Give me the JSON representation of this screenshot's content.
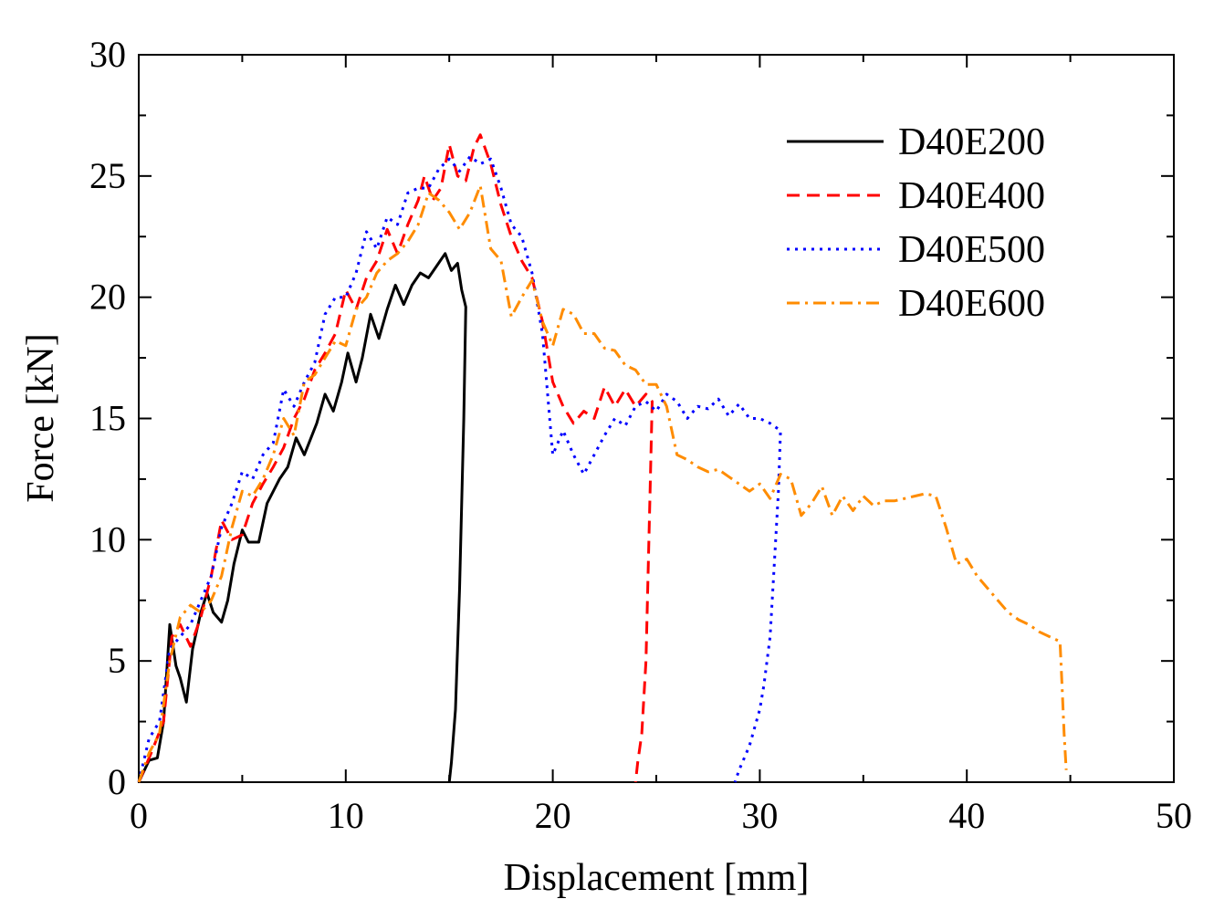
{
  "chart_data": {
    "type": "line",
    "title": "",
    "xlabel": "Displacement [mm]",
    "ylabel": "Force [kN]",
    "xlim": [
      0,
      50
    ],
    "ylim": [
      0,
      30
    ],
    "xticks": [
      0,
      10,
      20,
      30,
      40,
      50
    ],
    "yticks": [
      0,
      5,
      10,
      15,
      20,
      25,
      30
    ],
    "grid": false,
    "legend_position": "top-right",
    "series": [
      {
        "name": "D40E200",
        "color": "#000000",
        "dash": "solid",
        "points": [
          [
            0,
            0
          ],
          [
            0.5,
            0.9
          ],
          [
            0.9,
            1.0
          ],
          [
            1.2,
            2.5
          ],
          [
            1.5,
            6.5
          ],
          [
            1.8,
            4.8
          ],
          [
            2.0,
            4.3
          ],
          [
            2.3,
            3.3
          ],
          [
            2.6,
            5.5
          ],
          [
            3.0,
            7.0
          ],
          [
            3.3,
            7.8
          ],
          [
            3.6,
            7.0
          ],
          [
            4.0,
            6.6
          ],
          [
            4.3,
            7.5
          ],
          [
            4.6,
            9.0
          ],
          [
            5.0,
            10.4
          ],
          [
            5.3,
            9.9
          ],
          [
            5.8,
            9.9
          ],
          [
            6.2,
            11.5
          ],
          [
            6.8,
            12.5
          ],
          [
            7.2,
            13.0
          ],
          [
            7.6,
            14.2
          ],
          [
            8.0,
            13.5
          ],
          [
            8.6,
            14.8
          ],
          [
            9.0,
            16.0
          ],
          [
            9.4,
            15.3
          ],
          [
            9.8,
            16.5
          ],
          [
            10.1,
            17.7
          ],
          [
            10.5,
            16.5
          ],
          [
            10.8,
            17.5
          ],
          [
            11.2,
            19.3
          ],
          [
            11.6,
            18.3
          ],
          [
            12.0,
            19.5
          ],
          [
            12.4,
            20.5
          ],
          [
            12.8,
            19.7
          ],
          [
            13.2,
            20.5
          ],
          [
            13.6,
            21.0
          ],
          [
            14.0,
            20.8
          ],
          [
            14.4,
            21.3
          ],
          [
            14.8,
            21.8
          ],
          [
            15.1,
            21.1
          ],
          [
            15.4,
            21.4
          ],
          [
            15.6,
            20.3
          ],
          [
            15.8,
            19.6
          ],
          [
            15.7,
            15.0
          ],
          [
            15.5,
            8.0
          ],
          [
            15.3,
            3.0
          ],
          [
            15.1,
            0.8
          ],
          [
            15.0,
            0
          ]
        ]
      },
      {
        "name": "D40E400",
        "color": "#ff0000",
        "dash": "dashed",
        "points": [
          [
            0,
            0
          ],
          [
            0.6,
            1.2
          ],
          [
            1.2,
            2.5
          ],
          [
            1.6,
            6.0
          ],
          [
            2.0,
            6.5
          ],
          [
            2.5,
            5.6
          ],
          [
            3.0,
            6.8
          ],
          [
            3.5,
            8.5
          ],
          [
            4.0,
            10.8
          ],
          [
            4.5,
            10.0
          ],
          [
            5.0,
            10.2
          ],
          [
            5.5,
            11.5
          ],
          [
            6.0,
            12.3
          ],
          [
            6.5,
            13.0
          ],
          [
            7.0,
            13.8
          ],
          [
            7.5,
            15.0
          ],
          [
            8.0,
            15.8
          ],
          [
            8.5,
            17.0
          ],
          [
            9.0,
            17.7
          ],
          [
            9.5,
            18.5
          ],
          [
            10.0,
            20.3
          ],
          [
            10.5,
            19.5
          ],
          [
            11.0,
            20.8
          ],
          [
            11.5,
            21.5
          ],
          [
            12.0,
            22.8
          ],
          [
            12.5,
            21.8
          ],
          [
            13.0,
            23.0
          ],
          [
            13.5,
            24.0
          ],
          [
            13.8,
            25.0
          ],
          [
            14.2,
            24.0
          ],
          [
            14.6,
            24.5
          ],
          [
            15.0,
            26.3
          ],
          [
            15.4,
            25.0
          ],
          [
            15.8,
            24.8
          ],
          [
            16.2,
            26.2
          ],
          [
            16.5,
            26.7
          ],
          [
            17.0,
            25.5
          ],
          [
            17.5,
            23.8
          ],
          [
            18.0,
            22.5
          ],
          [
            18.5,
            21.5
          ],
          [
            19.0,
            20.8
          ],
          [
            19.5,
            19.0
          ],
          [
            20.0,
            16.5
          ],
          [
            20.5,
            15.5
          ],
          [
            21.0,
            14.8
          ],
          [
            21.5,
            15.3
          ],
          [
            22.0,
            15.0
          ],
          [
            22.5,
            16.3
          ],
          [
            23.0,
            15.5
          ],
          [
            23.5,
            16.2
          ],
          [
            24.0,
            15.5
          ],
          [
            24.5,
            16.0
          ],
          [
            24.8,
            15.7
          ],
          [
            24.7,
            12.0
          ],
          [
            24.5,
            5.0
          ],
          [
            24.3,
            2.0
          ],
          [
            24.1,
            0.8
          ],
          [
            24.0,
            0
          ]
        ]
      },
      {
        "name": "D40E500",
        "color": "#0000ff",
        "dash": "dotted",
        "points": [
          [
            0,
            0
          ],
          [
            0.5,
            1.8
          ],
          [
            1.0,
            2.5
          ],
          [
            1.5,
            5.5
          ],
          [
            2.0,
            6.0
          ],
          [
            2.5,
            6.5
          ],
          [
            3.0,
            7.5
          ],
          [
            3.5,
            8.5
          ],
          [
            4.0,
            10.5
          ],
          [
            4.5,
            11.5
          ],
          [
            5.0,
            12.8
          ],
          [
            5.5,
            12.5
          ],
          [
            6.0,
            13.5
          ],
          [
            6.5,
            14.0
          ],
          [
            7.0,
            16.2
          ],
          [
            7.5,
            15.5
          ],
          [
            8.0,
            16.5
          ],
          [
            8.5,
            17.3
          ],
          [
            9.0,
            19.3
          ],
          [
            9.5,
            20.0
          ],
          [
            10.0,
            20.0
          ],
          [
            10.5,
            21.0
          ],
          [
            11.0,
            22.7
          ],
          [
            11.5,
            22.0
          ],
          [
            12.0,
            23.3
          ],
          [
            12.5,
            23.0
          ],
          [
            13.0,
            24.3
          ],
          [
            13.5,
            24.5
          ],
          [
            14.0,
            24.5
          ],
          [
            14.5,
            25.3
          ],
          [
            15.0,
            25.7
          ],
          [
            15.5,
            25.2
          ],
          [
            16.0,
            25.8
          ],
          [
            16.5,
            25.5
          ],
          [
            17.0,
            25.7
          ],
          [
            17.5,
            24.5
          ],
          [
            18.0,
            23.0
          ],
          [
            18.5,
            22.5
          ],
          [
            19.0,
            21.0
          ],
          [
            19.5,
            18.5
          ],
          [
            20.0,
            13.5
          ],
          [
            20.5,
            14.5
          ],
          [
            21.0,
            13.5
          ],
          [
            21.5,
            12.7
          ],
          [
            22.0,
            13.5
          ],
          [
            22.5,
            14.3
          ],
          [
            23.0,
            15.0
          ],
          [
            23.5,
            14.7
          ],
          [
            24.0,
            15.5
          ],
          [
            24.5,
            15.7
          ],
          [
            25.0,
            15.3
          ],
          [
            25.5,
            16.0
          ],
          [
            26.0,
            15.7
          ],
          [
            26.5,
            15.0
          ],
          [
            27.0,
            15.5
          ],
          [
            27.5,
            15.4
          ],
          [
            28.0,
            15.8
          ],
          [
            28.5,
            15.1
          ],
          [
            29.0,
            15.6
          ],
          [
            29.5,
            15.0
          ],
          [
            30.0,
            15.0
          ],
          [
            30.5,
            14.8
          ],
          [
            31.0,
            14.5
          ],
          [
            30.9,
            12.0
          ],
          [
            30.7,
            9.0
          ],
          [
            30.5,
            6.0
          ],
          [
            30.2,
            4.0
          ],
          [
            30.0,
            3.0
          ],
          [
            29.5,
            1.5
          ],
          [
            29.0,
            0.5
          ],
          [
            28.8,
            0
          ]
        ]
      },
      {
        "name": "D40E600",
        "color": "#ff8c00",
        "dash": "dash-dot",
        "points": [
          [
            0,
            0
          ],
          [
            0.5,
            1.2
          ],
          [
            1.0,
            2.0
          ],
          [
            1.5,
            5.0
          ],
          [
            2.0,
            6.8
          ],
          [
            2.5,
            7.3
          ],
          [
            3.0,
            7.0
          ],
          [
            3.5,
            7.5
          ],
          [
            4.0,
            8.5
          ],
          [
            4.5,
            10.5
          ],
          [
            5.0,
            12.0
          ],
          [
            5.5,
            11.8
          ],
          [
            6.0,
            12.5
          ],
          [
            6.5,
            13.5
          ],
          [
            7.0,
            15.0
          ],
          [
            7.5,
            14.3
          ],
          [
            8.0,
            16.5
          ],
          [
            8.5,
            16.8
          ],
          [
            9.0,
            17.5
          ],
          [
            9.5,
            18.2
          ],
          [
            10.0,
            18.0
          ],
          [
            10.5,
            19.5
          ],
          [
            11.0,
            20.0
          ],
          [
            11.5,
            21.0
          ],
          [
            12.0,
            21.5
          ],
          [
            12.5,
            21.8
          ],
          [
            13.0,
            22.3
          ],
          [
            13.5,
            23.0
          ],
          [
            14.0,
            24.3
          ],
          [
            14.5,
            24.0
          ],
          [
            15.0,
            23.5
          ],
          [
            15.5,
            22.8
          ],
          [
            16.0,
            23.5
          ],
          [
            16.5,
            24.6
          ],
          [
            17.0,
            22.0
          ],
          [
            17.5,
            21.5
          ],
          [
            18.0,
            19.2
          ],
          [
            18.5,
            20.0
          ],
          [
            19.0,
            20.7
          ],
          [
            19.5,
            19.0
          ],
          [
            20.0,
            18.0
          ],
          [
            20.5,
            19.5
          ],
          [
            21.0,
            19.3
          ],
          [
            21.5,
            18.5
          ],
          [
            22.0,
            18.5
          ],
          [
            22.5,
            17.9
          ],
          [
            23.0,
            17.8
          ],
          [
            23.5,
            17.2
          ],
          [
            24.0,
            17.0
          ],
          [
            24.5,
            16.4
          ],
          [
            25.0,
            16.4
          ],
          [
            25.5,
            15.5
          ],
          [
            26.0,
            13.5
          ],
          [
            26.5,
            13.3
          ],
          [
            27.0,
            13.0
          ],
          [
            27.5,
            12.8
          ],
          [
            28.0,
            12.9
          ],
          [
            28.5,
            12.6
          ],
          [
            29.0,
            12.3
          ],
          [
            29.5,
            12.0
          ],
          [
            30.0,
            12.3
          ],
          [
            30.5,
            11.7
          ],
          [
            31.0,
            12.7
          ],
          [
            31.5,
            12.5
          ],
          [
            32.0,
            11.0
          ],
          [
            32.5,
            11.5
          ],
          [
            33.0,
            12.2
          ],
          [
            33.5,
            11.0
          ],
          [
            34.0,
            11.8
          ],
          [
            34.5,
            11.2
          ],
          [
            35.0,
            11.8
          ],
          [
            35.5,
            11.4
          ],
          [
            36.0,
            11.6
          ],
          [
            36.5,
            11.6
          ],
          [
            37.0,
            11.7
          ],
          [
            37.5,
            11.8
          ],
          [
            38.0,
            11.9
          ],
          [
            38.5,
            11.8
          ],
          [
            39.0,
            10.5
          ],
          [
            39.5,
            9.0
          ],
          [
            40.0,
            9.2
          ],
          [
            40.5,
            8.5
          ],
          [
            41.0,
            8.0
          ],
          [
            41.5,
            7.5
          ],
          [
            42.0,
            7.0
          ],
          [
            42.5,
            6.7
          ],
          [
            43.0,
            6.5
          ],
          [
            43.5,
            6.2
          ],
          [
            44.0,
            6.0
          ],
          [
            44.5,
            5.8
          ],
          [
            44.6,
            4.0
          ],
          [
            44.7,
            2.0
          ],
          [
            44.8,
            0.5
          ]
        ]
      }
    ]
  }
}
